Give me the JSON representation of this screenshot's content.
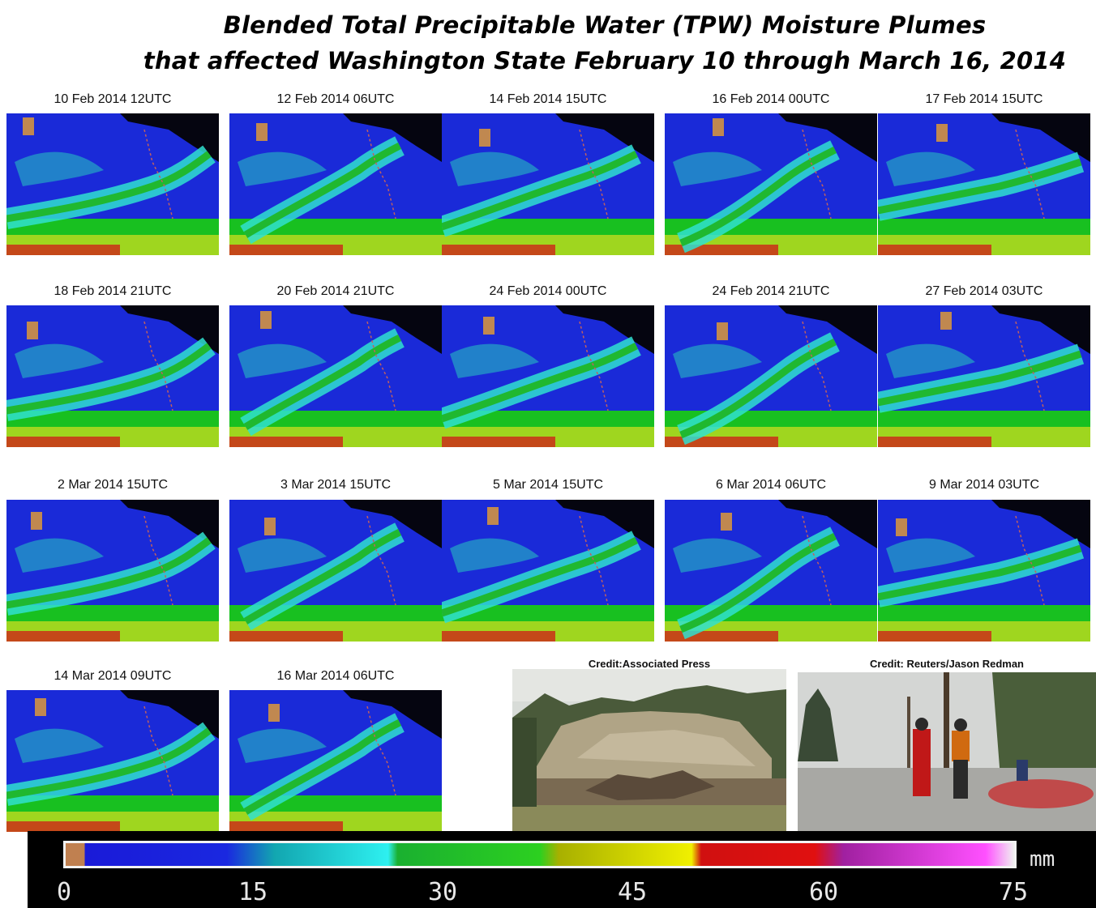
{
  "title": {
    "line1": "Blended Total Precipitable Water (TPW) Moisture Plumes",
    "line2": "that affected Washington State February 10 through March 16, 2014"
  },
  "panels": [
    {
      "label": "10 Feb 2014 12UTC"
    },
    {
      "label": "12 Feb 2014 06UTC"
    },
    {
      "label": "14 Feb 2014 15UTC"
    },
    {
      "label": "16 Feb 2014 00UTC"
    },
    {
      "label": "17 Feb 2014 15UTC"
    },
    {
      "label": "18 Feb 2014 21UTC"
    },
    {
      "label": "20 Feb 2014 21UTC"
    },
    {
      "label": "24 Feb 2014 00UTC"
    },
    {
      "label": "24 Feb 2014 21UTC"
    },
    {
      "label": "27 Feb 2014 03UTC"
    },
    {
      "label": "2 Mar 2014 15UTC"
    },
    {
      "label": "3 Mar 2014 15UTC"
    },
    {
      "label": "5 Mar 2014 15UTC"
    },
    {
      "label": "6 Mar 2014 06UTC"
    },
    {
      "label": "9 Mar 2014 03UTC"
    },
    {
      "label": "14 Mar 2014 09UTC"
    },
    {
      "label": "16 Mar 2014 06UTC"
    }
  ],
  "photos": [
    {
      "credit": "Credit:Associated Press"
    },
    {
      "credit": "Credit: Reuters/Jason Redman"
    }
  ],
  "colorbar": {
    "ticks": [
      "0",
      "15",
      "30",
      "45",
      "60",
      "75"
    ],
    "unit": "mm"
  }
}
